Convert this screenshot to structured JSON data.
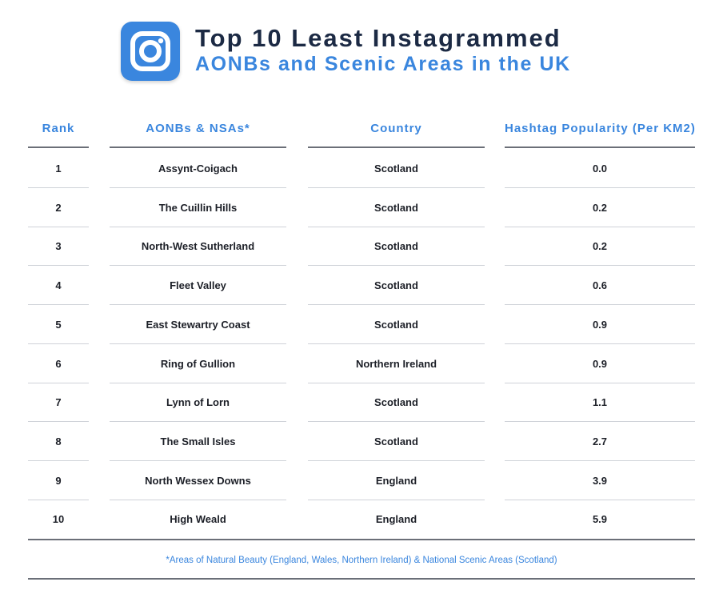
{
  "header": {
    "title_line1": "Top 10 Least Instagrammed",
    "title_line2": "AONBs and Scenic Areas in the UK",
    "logo_icon": "instagram-icon"
  },
  "chart_data": {
    "type": "table",
    "columns": [
      "Rank",
      "AONBs & NSAs*",
      "Country",
      "Hashtag Popularity (Per KM2)"
    ],
    "rows": [
      {
        "rank": "1",
        "name": "Assynt-Coigach",
        "country": "Scotland",
        "popularity": "0.0"
      },
      {
        "rank": "2",
        "name": "The Cuillin Hills",
        "country": "Scotland",
        "popularity": "0.2"
      },
      {
        "rank": "3",
        "name": "North-West Sutherland",
        "country": "Scotland",
        "popularity": "0.2"
      },
      {
        "rank": "4",
        "name": "Fleet Valley",
        "country": "Scotland",
        "popularity": "0.6"
      },
      {
        "rank": "5",
        "name": "East Stewartry Coast",
        "country": "Scotland",
        "popularity": "0.9"
      },
      {
        "rank": "6",
        "name": "Ring of Gullion",
        "country": "Northern Ireland",
        "popularity": "0.9"
      },
      {
        "rank": "7",
        "name": "Lynn of Lorn",
        "country": "Scotland",
        "popularity": "1.1"
      },
      {
        "rank": "8",
        "name": "The Small Isles",
        "country": "Scotland",
        "popularity": "2.7"
      },
      {
        "rank": "9",
        "name": "North Wessex Downs",
        "country": "England",
        "popularity": "3.9"
      },
      {
        "rank": "10",
        "name": "High Weald",
        "country": "England",
        "popularity": "5.9"
      }
    ],
    "footnote": "*Areas of Natural Beauty (England, Wales, Northern Ireland) & National Scenic Areas (Scotland)"
  },
  "colors": {
    "accent": "#3a86de",
    "title": "#1c2a44",
    "rule": "#6b6f78",
    "row_rule": "#cfd2d8"
  }
}
